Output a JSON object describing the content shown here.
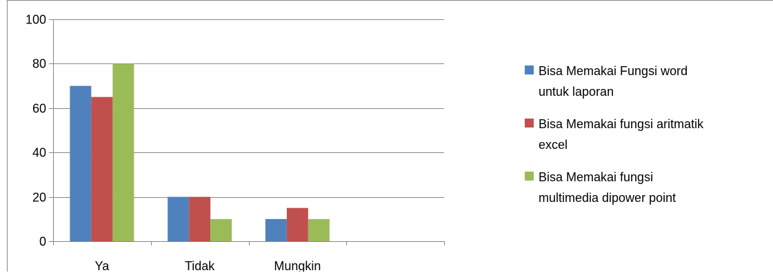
{
  "chart_data": {
    "type": "bar",
    "categories": [
      "Ya",
      "Tidak",
      "Mungkin",
      ""
    ],
    "series": [
      {
        "name": "Bisa Memakai Fungsi word untuk laporan",
        "legend_lines": [
          "Bisa Memakai Fungsi word",
          "untuk laporan"
        ],
        "color": "#4F81BD",
        "values": [
          70,
          20,
          10,
          null
        ]
      },
      {
        "name": "Bisa Memakai fungsi aritmatik excel",
        "legend_lines": [
          "Bisa Memakai fungsi aritmatik",
          "excel"
        ],
        "color": "#C0504D",
        "values": [
          65,
          20,
          15,
          null
        ]
      },
      {
        "name": "Bisa Memakai fungsi multimedia dipower point",
        "legend_lines": [
          "Bisa Memakai fungsi",
          "multimedia dipower point"
        ],
        "color": "#9BBB59",
        "values": [
          80,
          10,
          10,
          null
        ]
      }
    ],
    "y_ticks": [
      "0",
      "20",
      "40",
      "60",
      "80",
      "100"
    ],
    "ylim": [
      0,
      100
    ],
    "grid": true,
    "legend_position": "right"
  }
}
